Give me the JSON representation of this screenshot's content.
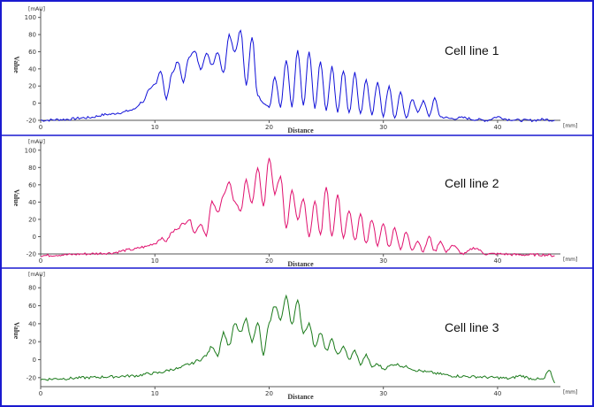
{
  "colors": {
    "frame": "#1a1ad0",
    "divider": "#1a1ad0",
    "axis": "#555555"
  },
  "chart_data": [
    {
      "type": "line",
      "panel_label": "Cell line 1",
      "xlabel": "Distance",
      "ylabel": "Value",
      "x_unit": "[mm]",
      "y_unit": "[mAU]",
      "xlim": [
        0,
        45.5
      ],
      "ylim": [
        -20,
        110
      ],
      "xticks": [
        0,
        10,
        20,
        30,
        40
      ],
      "yticks": [
        -20,
        0,
        20,
        40,
        60,
        80,
        100
      ],
      "color": "#1010d8",
      "series": [
        {
          "x": [
            0,
            2,
            4,
            6,
            7,
            8,
            9,
            9.5,
            10,
            10.5,
            11,
            11.5,
            12,
            12.5,
            13,
            13.5,
            14,
            14.5,
            15,
            15.5,
            16,
            16.5,
            17,
            17.5,
            18,
            18.5,
            19,
            19.5,
            20,
            20.5,
            21,
            21.5,
            22,
            22.5,
            23,
            23.5,
            24,
            24.5,
            25,
            25.5,
            26,
            26.5,
            27,
            27.5,
            28,
            28.5,
            29,
            29.5,
            30,
            30.5,
            31,
            31.5,
            32,
            32.5,
            33,
            33.5,
            34,
            34.5,
            35,
            36,
            37,
            38,
            39,
            40,
            41,
            42,
            43,
            44,
            45
          ],
          "y": [
            -20,
            -19,
            -17,
            -13,
            -11,
            -8,
            2,
            15,
            22,
            38,
            5,
            35,
            48,
            25,
            55,
            60,
            40,
            58,
            45,
            60,
            35,
            80,
            60,
            85,
            20,
            78,
            10,
            0,
            -5,
            30,
            -5,
            50,
            -5,
            62,
            -3,
            60,
            -5,
            48,
            -8,
            42,
            -10,
            38,
            -12,
            35,
            -12,
            28,
            -14,
            25,
            -15,
            20,
            -18,
            12,
            -18,
            5,
            -10,
            2,
            -15,
            5,
            -16,
            -18,
            -17,
            -19,
            -20,
            -16,
            -19,
            -20,
            -20,
            -19,
            -20
          ]
        }
      ]
    },
    {
      "type": "line",
      "panel_label": "Cell line 2",
      "xlabel": "Distance",
      "ylabel": "Value",
      "x_unit": "[mm]",
      "y_unit": "[mAU]",
      "xlim": [
        0,
        45.5
      ],
      "ylim": [
        -20,
        110
      ],
      "xticks": [
        0,
        10,
        20,
        30,
        40
      ],
      "yticks": [
        -20,
        0,
        20,
        40,
        60,
        80,
        100
      ],
      "color": "#e0106e",
      "series": [
        {
          "x": [
            0,
            2,
            4,
            6,
            8,
            9,
            10,
            10.5,
            11,
            11.5,
            12,
            12.5,
            13,
            13.5,
            14,
            14.5,
            15,
            15.5,
            16,
            16.5,
            17,
            17.5,
            18,
            18.5,
            19,
            19.5,
            20,
            20.5,
            21,
            21.5,
            22,
            22.5,
            23,
            23.5,
            24,
            24.5,
            25,
            25.5,
            26,
            26.5,
            27,
            27.5,
            28,
            28.5,
            29,
            29.5,
            30,
            30.5,
            31,
            31.5,
            32,
            32.5,
            33,
            33.5,
            34,
            34.5,
            35,
            35.5,
            36,
            37,
            38,
            39,
            40,
            42,
            44,
            45
          ],
          "y": [
            -22,
            -21,
            -20,
            -19,
            -15,
            -12,
            -8,
            -2,
            -5,
            5,
            10,
            15,
            20,
            5,
            15,
            2,
            40,
            28,
            48,
            62,
            40,
            30,
            65,
            38,
            80,
            35,
            90,
            50,
            70,
            10,
            55,
            20,
            45,
            0,
            40,
            2,
            58,
            0,
            48,
            -2,
            30,
            -5,
            25,
            -8,
            20,
            -10,
            15,
            -12,
            10,
            -14,
            5,
            -15,
            -5,
            -17,
            0,
            -17,
            -5,
            -18,
            -10,
            -20,
            -13,
            -20,
            -20,
            -21,
            -21,
            -22
          ]
        }
      ]
    },
    {
      "type": "line",
      "panel_label": "Cell line 3",
      "xlabel": "Distance",
      "ylabel": "Value",
      "x_unit": "[mm]",
      "y_unit": "[mAU]",
      "xlim": [
        0,
        45.5
      ],
      "ylim": [
        -30,
        95
      ],
      "xticks": [
        0,
        10,
        20,
        30,
        40
      ],
      "yticks": [
        -20,
        0,
        20,
        40,
        60,
        80
      ],
      "color": "#1a7a1a",
      "series": [
        {
          "x": [
            0,
            2,
            4,
            6,
            8,
            10,
            12,
            13,
            14,
            14.5,
            15,
            15.5,
            16,
            16.5,
            17,
            17.5,
            18,
            18.5,
            19,
            19.5,
            20,
            20.5,
            21,
            21.5,
            22,
            22.5,
            23,
            23.5,
            24,
            24.5,
            25,
            25.5,
            26,
            26.5,
            27,
            27.5,
            28,
            28.5,
            29,
            29.5,
            30,
            31,
            32,
            33,
            34,
            35,
            36,
            38,
            40,
            41,
            42,
            43,
            44,
            44.5,
            45
          ],
          "y": [
            -22,
            -21,
            -20,
            -19,
            -18,
            -15,
            -10,
            -5,
            0,
            5,
            15,
            5,
            30,
            15,
            40,
            30,
            45,
            20,
            42,
            5,
            40,
            60,
            45,
            70,
            40,
            65,
            30,
            40,
            15,
            30,
            10,
            22,
            5,
            15,
            0,
            10,
            -5,
            5,
            -8,
            -5,
            -10,
            -5,
            -8,
            -12,
            -14,
            -16,
            -18,
            -19,
            -20,
            -21,
            -18,
            -21,
            -22,
            -12,
            -26
          ]
        }
      ]
    }
  ]
}
